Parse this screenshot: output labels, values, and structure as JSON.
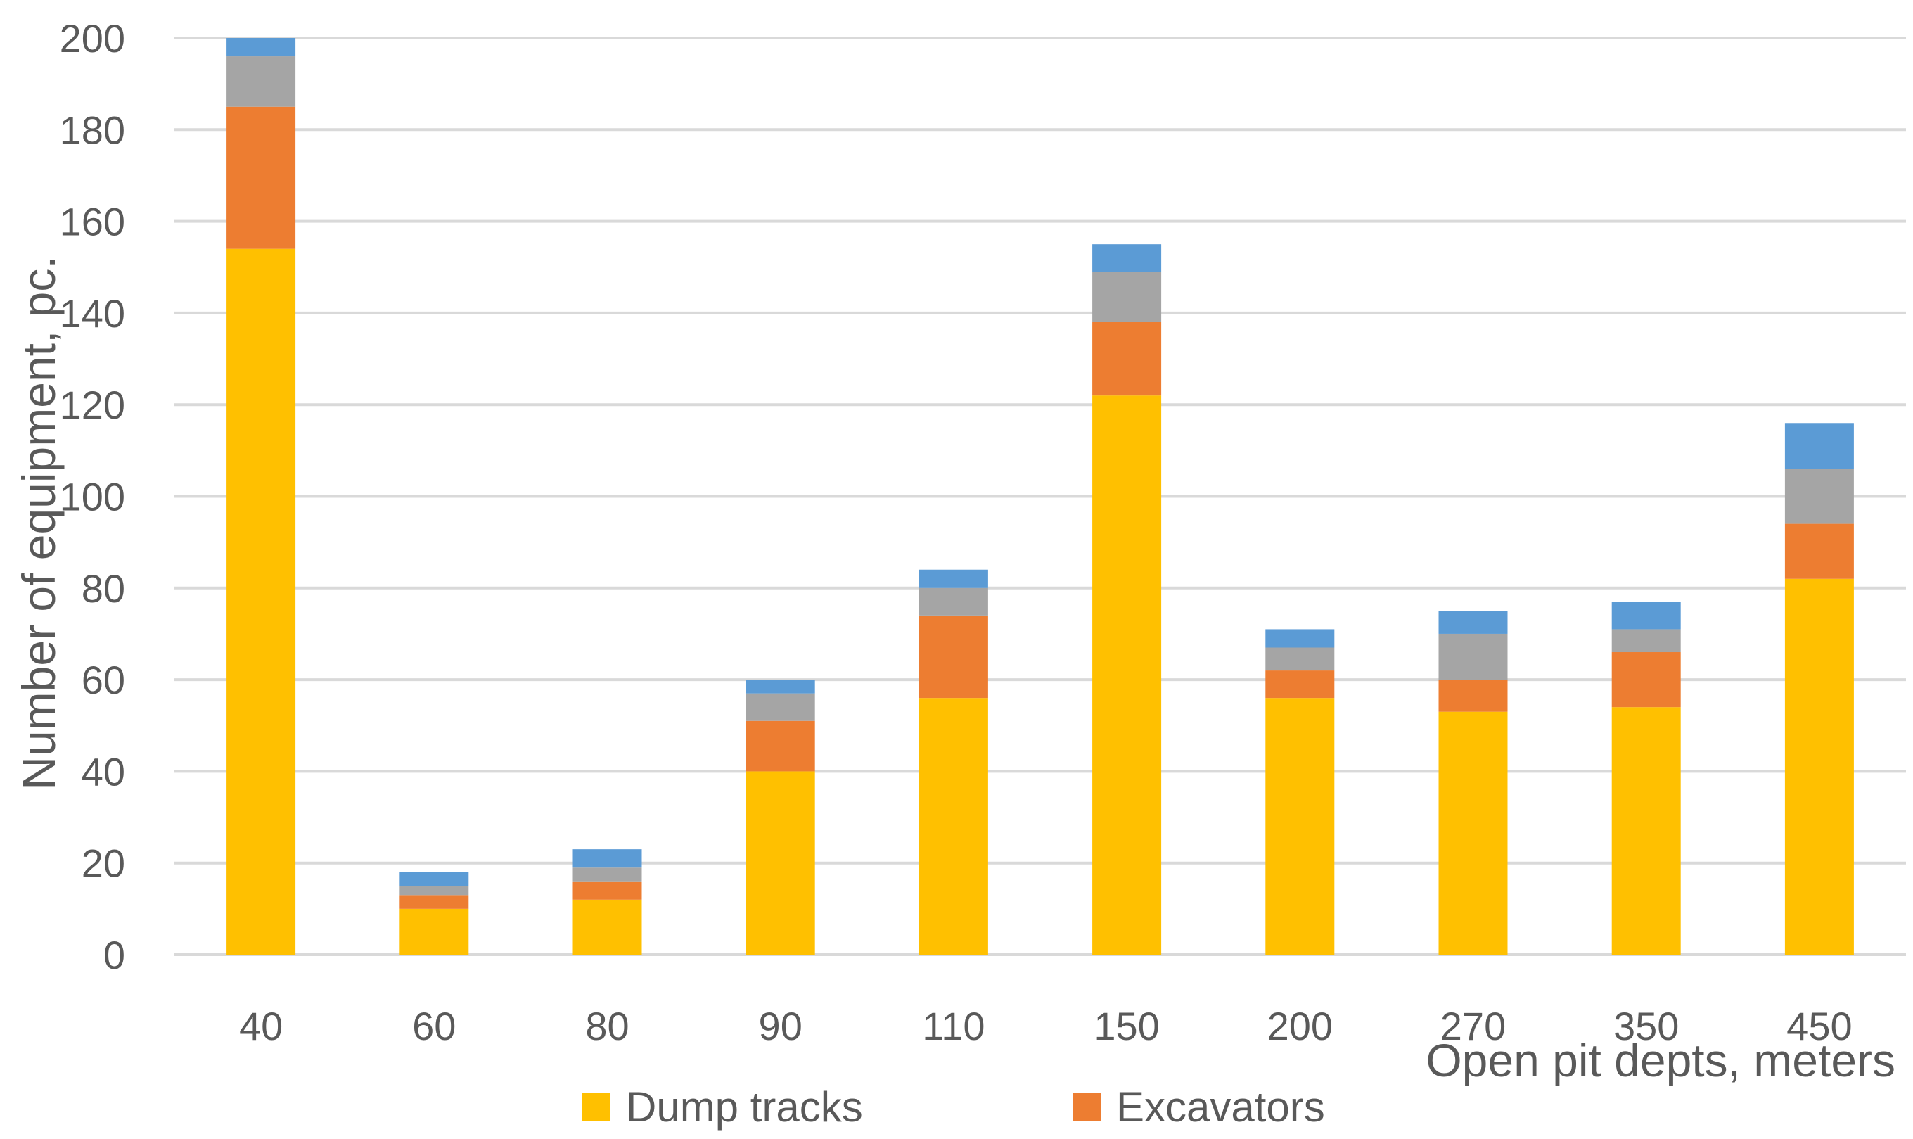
{
  "chart_data": {
    "type": "bar",
    "stacked": true,
    "categories": [
      "40",
      "60",
      "80",
      "90",
      "110",
      "150",
      "200",
      "270",
      "350",
      "450"
    ],
    "series": [
      {
        "name": "Dump tracks",
        "color": "#FFC000",
        "values": [
          154,
          10,
          12,
          40,
          56,
          122,
          56,
          53,
          54,
          82
        ]
      },
      {
        "name": "Excavators",
        "color": "#ED7D31",
        "values": [
          31,
          3,
          4,
          11,
          18,
          16,
          6,
          7,
          12,
          12
        ]
      },
      {
        "name": "",
        "color": "#A5A5A5",
        "values": [
          11,
          2,
          3,
          6,
          6,
          11,
          5,
          10,
          5,
          12
        ]
      },
      {
        "name": "",
        "color": "#5B9BD5",
        "values": [
          4,
          3,
          4,
          3,
          4,
          6,
          4,
          5,
          6,
          10
        ]
      }
    ],
    "yticks": [
      "0",
      "20",
      "40",
      "60",
      "80",
      "100",
      "120",
      "140",
      "160",
      "180",
      "200"
    ],
    "ylim": [
      0,
      200
    ],
    "ylabel": "Number of equipment, pc.",
    "xlabel": "Open pit depts, meters",
    "grid": true,
    "legend_position": "bottom",
    "gridline_color": "#D9D9D9"
  }
}
